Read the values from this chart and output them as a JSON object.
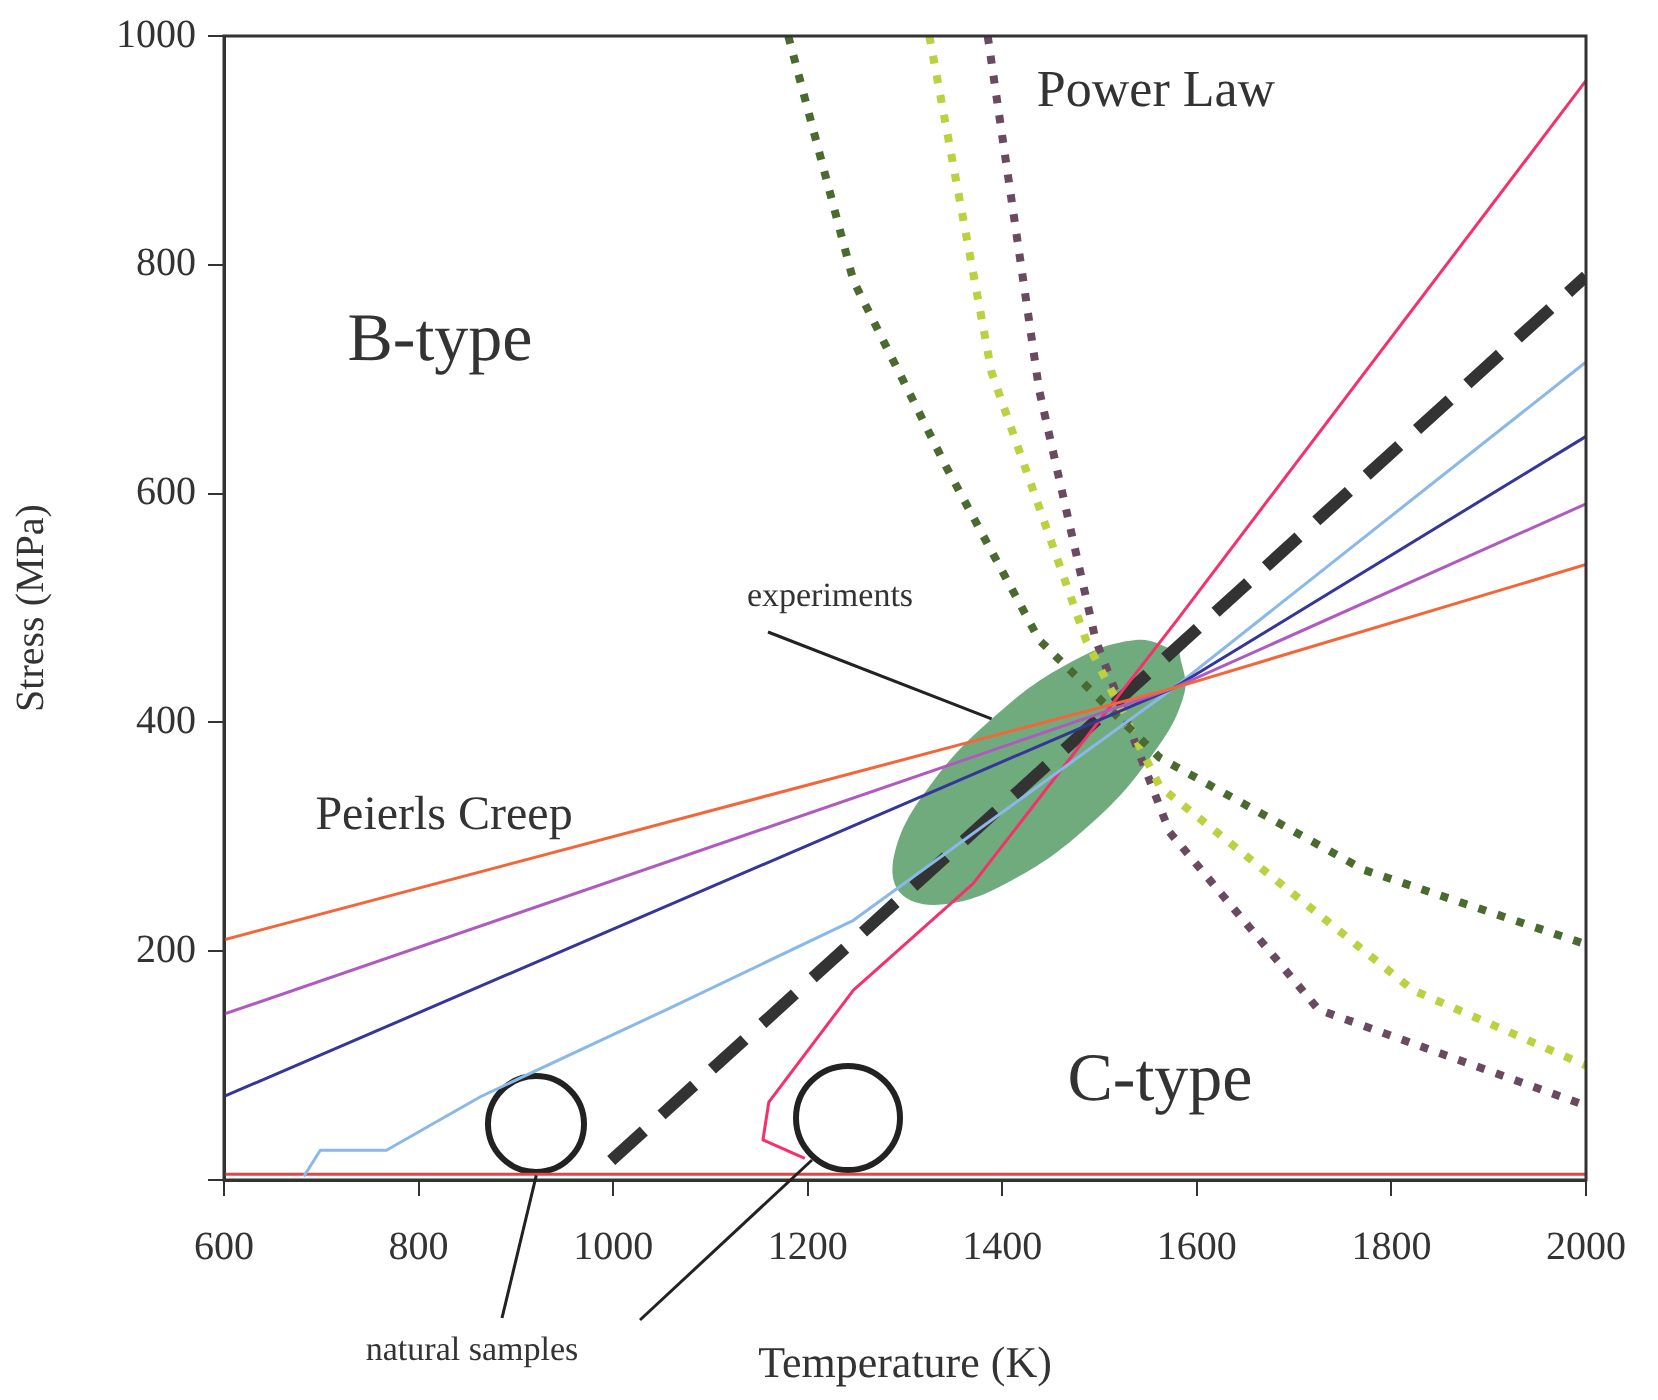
{
  "chart_data": {
    "type": "line",
    "xlabel": "Temperature (K)",
    "ylabel": "Stress (MPa)",
    "xlim": [
      600,
      2000
    ],
    "ylim": [
      0,
      1000
    ],
    "xticks": [
      600,
      800,
      1000,
      1200,
      1400,
      1600,
      1800,
      2000
    ],
    "yticks": [
      {
        "value": 0,
        "label": null
      },
      200,
      400,
      600,
      800,
      1000
    ],
    "grid": false,
    "legend": false,
    "marker": "none",
    "series": [
      {
        "type": "area",
        "name": "experiments",
        "color": "#5a9e6a",
        "x": [
          1582,
          1587,
          1552,
          1488,
          1410,
          1340,
          1295,
          1290,
          1325,
          1389,
          1467,
          1537,
          1582
        ],
        "values": [
          462,
          425,
          369,
          309,
          262,
          241,
          251,
          288,
          344,
          403,
          451,
          472,
          462
        ]
      },
      {
        "color": "#f2663a",
        "line_style": "solid",
        "x": [
          600,
          1576,
          2000
        ],
        "values": [
          210,
          430,
          538
        ]
      },
      {
        "color": "#b05ac0",
        "line_style": "solid",
        "x": [
          600,
          1576,
          2000
        ],
        "values": [
          145,
          430,
          591
        ]
      },
      {
        "color": "#34369a",
        "line_style": "solid",
        "x": [
          600,
          1576,
          2000
        ],
        "values": [
          73,
          430,
          650
        ]
      },
      {
        "color": "#8ab8e8",
        "line_style": "solid",
        "x": [
          682,
          699,
          767,
          864,
          1055,
          1247,
          1576,
          2000
        ],
        "values": [
          3,
          26,
          26,
          73,
          149,
          227,
          430,
          715
        ]
      },
      {
        "color": "#f5306a",
        "line_style": "solid",
        "x": [
          1197,
          1154,
          1160,
          1247,
          1370,
          1581,
          2000
        ],
        "values": [
          19,
          35,
          68,
          166,
          259,
          491,
          961
        ]
      },
      {
        "color": "#e04848",
        "line_style": "solid",
        "x": [
          600,
          2000
        ],
        "values": [
          5,
          5
        ]
      },
      {
        "color": "#333333",
        "line_style": "dashed",
        "x": [
          998,
          2000
        ],
        "values": [
          17,
          790
        ]
      },
      {
        "color": "#4a6a30",
        "line_style": "dotted",
        "x": [
          1180,
          1247,
          1342,
          1438,
          1562,
          1772,
          2000
        ],
        "values": [
          1000,
          786,
          624,
          472,
          369,
          271,
          206
        ]
      },
      {
        "color": "#bcd040",
        "line_style": "dotted",
        "x": [
          1325,
          1389,
          1486,
          1562,
          1822,
          2000
        ],
        "values": [
          1000,
          706,
          472,
          344,
          166,
          100
        ]
      },
      {
        "color": "#6a4a60",
        "line_style": "dotted",
        "x": [
          1385,
          1438,
          1496,
          1572,
          1725,
          2000
        ],
        "values": [
          1000,
          690,
          472,
          304,
          149,
          65
        ]
      }
    ],
    "annotations": [
      "B-type",
      "C-type",
      "Power Law",
      "Peierls Creep",
      {
        "text": "natural samples",
        "x": 921,
        "y": 4
      }
    ]
  }
}
